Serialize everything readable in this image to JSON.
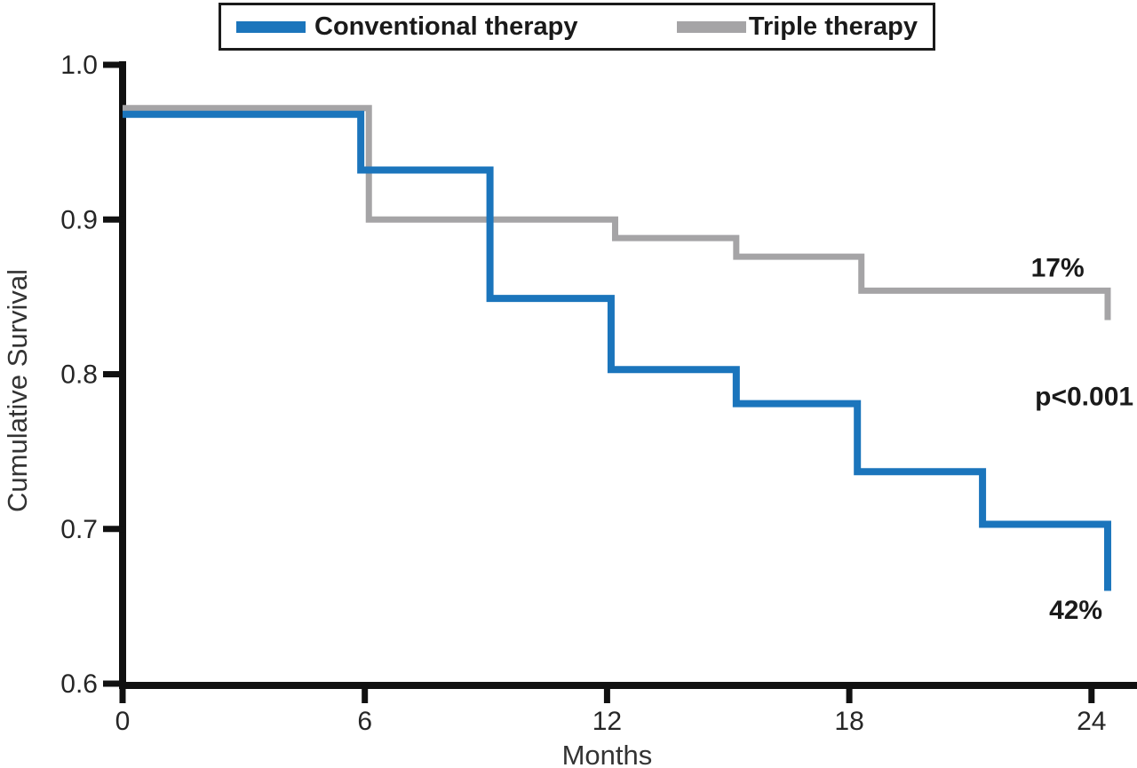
{
  "chart_data": {
    "type": "line",
    "subtype": "kaplan-meier-step",
    "title": "",
    "xlabel": "Months",
    "ylabel": "Cumulative Survival",
    "xlim": [
      0,
      25.1
    ],
    "ylim": [
      0.6,
      1.0
    ],
    "xticks": [
      0,
      6,
      12,
      18,
      24
    ],
    "yticks": [
      1.0,
      0.9,
      0.8,
      0.7,
      0.6
    ],
    "grid": false,
    "legend_position": "top",
    "series": [
      {
        "name": "Conventional therapy",
        "color": "#1B75BC",
        "end_label": "42%",
        "steps": [
          [
            0,
            0.968
          ],
          [
            5.9,
            0.932
          ],
          [
            9.1,
            0.849
          ],
          [
            12.1,
            0.803
          ],
          [
            15.2,
            0.781
          ],
          [
            18.2,
            0.737
          ],
          [
            21.3,
            0.703
          ],
          [
            24.4,
            0.66
          ]
        ]
      },
      {
        "name": "Triple therapy",
        "color": "#A5A4A6",
        "end_label": "17%",
        "steps": [
          [
            0,
            0.972
          ],
          [
            6.1,
            0.9
          ],
          [
            12.2,
            0.888
          ],
          [
            15.2,
            0.876
          ],
          [
            18.3,
            0.854
          ],
          [
            24.4,
            0.835
          ]
        ]
      }
    ],
    "annotations": [
      {
        "text": "17%",
        "x": 22.5,
        "y": 0.863
      },
      {
        "text": "p<0.001",
        "x": 22.6,
        "y": 0.78
      },
      {
        "text": "42%",
        "x": 22.95,
        "y": 0.642
      }
    ]
  },
  "colors": {
    "axis": "#111111",
    "text": "#1a1a1a"
  }
}
